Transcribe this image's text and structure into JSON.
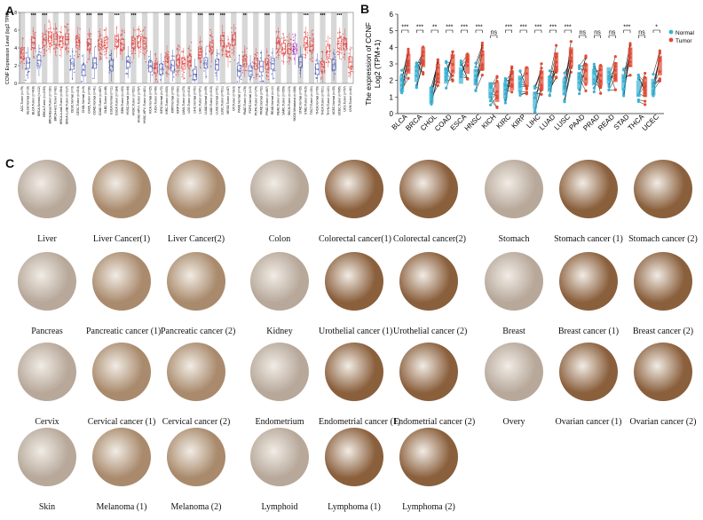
{
  "panels": {
    "a": "A",
    "b": "B",
    "c": "C"
  },
  "chart_data": [
    {
      "type": "box",
      "ylabel": "CCNF Expression Level (log2 TPM)",
      "ylim": [
        0,
        8
      ],
      "yticks": [
        0,
        2,
        4,
        6,
        8
      ],
      "categories": [
        "ACC.Tumor (n=79)",
        "BLCA.Normal (n=19)",
        "BLCA.Tumor (n=408)",
        "BRCA.Normal (n=112)",
        "BRCA.Tumor (n=1093)",
        "BRCA-Basal.Tumor (n=190)",
        "BRCA-Her2.Tumor (n=82)",
        "BRCA-LumA.Tumor (n=564)",
        "BRCA-LumB.Tumor (n=217)",
        "CESC.Normal (n=3)",
        "CESC.Tumor (n=304)",
        "CHOL.Normal (n=9)",
        "CHOL.Tumor (n=36)",
        "COAD.Normal (n=41)",
        "COAD.Tumor (n=457)",
        "DLBC.Tumor (n=48)",
        "ESCA.Normal (n=11)",
        "ESCA.Tumor (n=184)",
        "GBM.Tumor (n=153)",
        "HNSC.Normal (n=44)",
        "HNSC.Tumor (n=520)",
        "HNSC-HPV+.Tumor (n=97)",
        "HNSC-HPV-.Tumor (n=421)",
        "KICH.Normal (n=25)",
        "KICH.Tumor (n=66)",
        "KIRC.Normal (n=72)",
        "KIRC.Tumor (n=533)",
        "KIRP.Normal (n=32)",
        "KIRP.Tumor (n=290)",
        "LAML.Tumor (n=173)",
        "LGG.Tumor (n=516)",
        "LIHC.Normal (n=50)",
        "LIHC.Tumor (n=371)",
        "LUAD.Normal (n=59)",
        "LUAD.Tumor (n=515)",
        "LUSC.Normal (n=51)",
        "LUSC.Tumor (n=501)",
        "MESO.Tumor (n=87)",
        "OV.Tumor (n=303)",
        "PAAD.Normal (n=4)",
        "PAAD.Tumor (n=178)",
        "PCPG.Normal (n=3)",
        "PCPG.Tumor (n=179)",
        "PRAD.Normal (n=52)",
        "PRAD.Tumor (n=497)",
        "READ.Normal (n=10)",
        "READ.Tumor (n=166)",
        "SARC.Tumor (n=259)",
        "SKCM.Tumor (n=103)",
        "SKCM.Metastasis (n=368)",
        "STAD.Normal (n=35)",
        "STAD.Tumor (n=415)",
        "TGCT.Tumor (n=150)",
        "THCA.Normal (n=59)",
        "THCA.Tumor (n=501)",
        "THYM.Tumor (n=120)",
        "UCEC.Normal (n=35)",
        "UCEC.Tumor (n=545)",
        "UCS.Tumor (n=57)",
        "UVM.Tumor (n=80)"
      ],
      "groups": [
        "tumor",
        "normal",
        "tumor",
        "normal",
        "tumor",
        "tumor",
        "tumor",
        "tumor",
        "tumor",
        "normal",
        "tumor",
        "normal",
        "tumor",
        "normal",
        "tumor",
        "tumor",
        "normal",
        "tumor",
        "tumor",
        "normal",
        "tumor",
        "tumor",
        "tumor",
        "normal",
        "tumor",
        "normal",
        "tumor",
        "normal",
        "tumor",
        "tumor",
        "tumor",
        "normal",
        "tumor",
        "normal",
        "tumor",
        "normal",
        "tumor",
        "tumor",
        "tumor",
        "normal",
        "tumor",
        "normal",
        "tumor",
        "normal",
        "tumor",
        "normal",
        "tumor",
        "tumor",
        "tumor",
        "tumor",
        "normal",
        "tumor",
        "tumor",
        "normal",
        "tumor",
        "tumor",
        "normal",
        "tumor",
        "tumor",
        "tumor"
      ],
      "medians": [
        3.4,
        2.3,
        4.6,
        2.6,
        4.9,
        5.2,
        5.0,
        4.7,
        5.0,
        2.2,
        4.6,
        1.5,
        4.4,
        2.3,
        4.4,
        4.6,
        2.0,
        4.7,
        4.4,
        2.4,
        4.5,
        4.7,
        4.5,
        1.9,
        1.7,
        1.6,
        2.5,
        2.0,
        2.6,
        2.2,
        2.5,
        1.0,
        3.5,
        2.3,
        4.1,
        2.1,
        4.8,
        3.6,
        4.9,
        1.4,
        2.5,
        1.4,
        2.2,
        1.9,
        2.2,
        2.2,
        4.5,
        3.9,
        3.9,
        3.9,
        2.4,
        4.6,
        4.2,
        1.6,
        1.9,
        3.6,
        2.1,
        4.5,
        4.4,
        2.4
      ],
      "sig": [
        "",
        "",
        "***",
        "",
        "***",
        "",
        "",
        "",
        "",
        "",
        "**",
        "",
        "***",
        "",
        "***",
        "",
        "",
        "***",
        "",
        "",
        "***",
        "",
        "",
        "",
        "",
        "",
        "***",
        "",
        "***",
        "",
        "",
        "",
        "***",
        "",
        "***",
        "",
        "***",
        "",
        "",
        "",
        "**",
        "",
        "",
        "",
        "***",
        "",
        "",
        "",
        "",
        "",
        "",
        "***",
        "",
        "",
        "***",
        "",
        "",
        "***",
        "",
        ""
      ],
      "series_colors": {
        "tumor": "#e53935",
        "normal": "#3949ab",
        "highlight": "#9c27b0"
      }
    },
    {
      "type": "paired-dot",
      "ylabel": "The expression of CCNF\nLog2 (TPM+1)",
      "ylim": [
        0,
        6
      ],
      "yticks": [
        0,
        1,
        2,
        3,
        4,
        5,
        6
      ],
      "categories": [
        "BLCA",
        "BRCA",
        "CHOL",
        "COAD",
        "ESCA",
        "HNSC",
        "KICH",
        "KIRC",
        "KIRP",
        "LIHC",
        "LUAD",
        "LUSC",
        "PAAD",
        "PRAD",
        "READ",
        "STAD",
        "THCA",
        "UCEC"
      ],
      "normal_medians": [
        1.8,
        2.4,
        1.1,
        2.3,
        2.3,
        2.2,
        1.4,
        1.4,
        1.8,
        0.8,
        1.8,
        1.6,
        2.0,
        2.2,
        2.3,
        1.9,
        1.5,
        1.6
      ],
      "tumor_medians": [
        3.0,
        3.4,
        2.4,
        3.0,
        3.0,
        3.2,
        1.3,
        2.0,
        2.2,
        2.0,
        3.1,
        3.4,
        2.4,
        2.3,
        2.5,
        3.4,
        1.6,
        2.9
      ],
      "significance": [
        "***",
        "***",
        "**",
        "***",
        "***",
        "***",
        "ns",
        "***",
        "***",
        "***",
        "***",
        "***",
        "ns",
        "ns",
        "ns",
        "***",
        "ns",
        "*"
      ],
      "series": [
        {
          "name": "Normal",
          "color": "#3ab3d6"
        },
        {
          "name": "Tumor",
          "color": "#e34a33"
        }
      ]
    }
  ],
  "tissue_panel": [
    [
      "Liver",
      "Liver Cancer(1)",
      "Liver Cancer(2)"
    ],
    [
      "Colon",
      "Colorectal cancer(1)",
      "Colorectal cancer(2)"
    ],
    [
      "Stomach",
      "Stomach cancer (1)",
      "Stomach cancer (2)"
    ],
    [
      "Pancreas",
      "Pancreatic cancer (1)",
      "Pancreatic cancer (2)"
    ],
    [
      "Kidney",
      "Urothelial cancer (1)",
      "Urothelial cancer (2)"
    ],
    [
      "Breast",
      "Breast cancer (1)",
      "Breast cancer (2)"
    ],
    [
      "Cervix",
      "Cervical cancer (1)",
      "Cervical cancer (2)"
    ],
    [
      "Endometrium",
      "Endometrial cancer (1)",
      "Endometrial cancer (2)"
    ],
    [
      "Overy",
      "Ovarian cancer (1)",
      "Ovarian cancer (2)"
    ],
    [
      "Skin",
      "Melanoma (1)",
      "Melanoma (2)"
    ],
    [
      "Lymphoid",
      "Lymphoma (1)",
      "Lymphoma (2)"
    ]
  ],
  "stain_colors": {
    "weak": "#b7a89a",
    "moderate": "#a98a6c",
    "strong": "#8a5f3c",
    "background": "#f1ece5"
  }
}
